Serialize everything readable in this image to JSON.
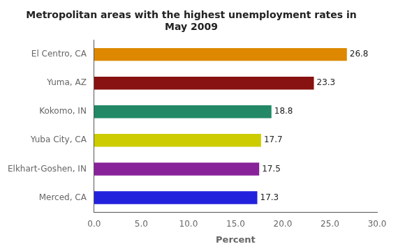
{
  "chart_data": {
    "type": "bar",
    "orientation": "horizontal",
    "title": "Metropolitan areas with the highest unemployment rates in\nMay 2009",
    "categories": [
      "Merced, CA",
      "Elkhart-Goshen, IN",
      "Yuba City, CA",
      "Kokomo, IN",
      "Yuma, AZ",
      "El Centro, CA"
    ],
    "values": [
      17.3,
      17.5,
      17.7,
      18.8,
      23.3,
      26.8
    ],
    "colors": [
      "#2222dd",
      "#882299",
      "#cccc00",
      "#228866",
      "#881111",
      "#dd8800"
    ],
    "xlabel": "Percent",
    "xlim": [
      0,
      30
    ],
    "xticks": [
      {
        "value": 0,
        "label": "0.0"
      },
      {
        "value": 5,
        "label": "5.0"
      },
      {
        "value": 10,
        "label": "10.0"
      },
      {
        "value": 15,
        "label": "15.0"
      },
      {
        "value": 20,
        "label": "20.0"
      },
      {
        "value": 25,
        "label": "25.0"
      },
      {
        "value": 30,
        "label": "30.0"
      }
    ],
    "grid": false,
    "data_labels": true
  }
}
